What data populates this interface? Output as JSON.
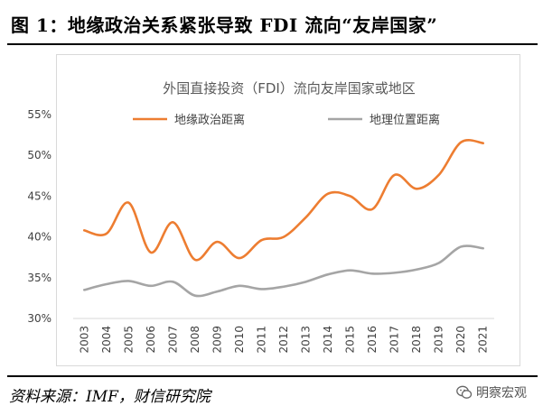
{
  "figure_title": "图 1：地缘政治关系紧张导致 FDI 流向“友岸国家”",
  "source": "资料来源：IMF，财信研究院",
  "watermark": {
    "text": "明察宏观",
    "icon": "wechat-icon"
  },
  "chart_data": {
    "type": "line",
    "title": "外国直接投资（FDI）流向友岸国家或地区",
    "xlabel": "",
    "ylabel": "",
    "x": [
      "2003",
      "2004",
      "2005",
      "2006",
      "2007",
      "2008",
      "2009",
      "2010",
      "2011",
      "2012",
      "2013",
      "2014",
      "2015",
      "2016",
      "2017",
      "2018",
      "2019",
      "2020",
      "2021"
    ],
    "series": [
      {
        "name": "地缘政治距离",
        "color": "#ED7D31",
        "values": [
          40.8,
          40.4,
          44.2,
          38.1,
          41.8,
          37.2,
          39.4,
          37.4,
          39.6,
          40.0,
          42.4,
          45.3,
          45.0,
          43.4,
          47.6,
          45.9,
          47.6,
          51.6,
          51.5
        ]
      },
      {
        "name": "地理位置距离",
        "color": "#A5A5A5",
        "values": [
          33.5,
          34.2,
          34.6,
          34.0,
          34.5,
          32.8,
          33.3,
          34.0,
          33.6,
          33.9,
          34.5,
          35.4,
          35.9,
          35.5,
          35.6,
          36.0,
          36.8,
          38.8,
          38.6
        ]
      }
    ],
    "ylim": [
      30,
      55
    ],
    "yticks": [
      "30%",
      "35%",
      "40%",
      "45%",
      "50%",
      "55%"
    ],
    "ytick_values": [
      30,
      35,
      40,
      45,
      50,
      55
    ],
    "grid": false,
    "legend": "top-left"
  }
}
